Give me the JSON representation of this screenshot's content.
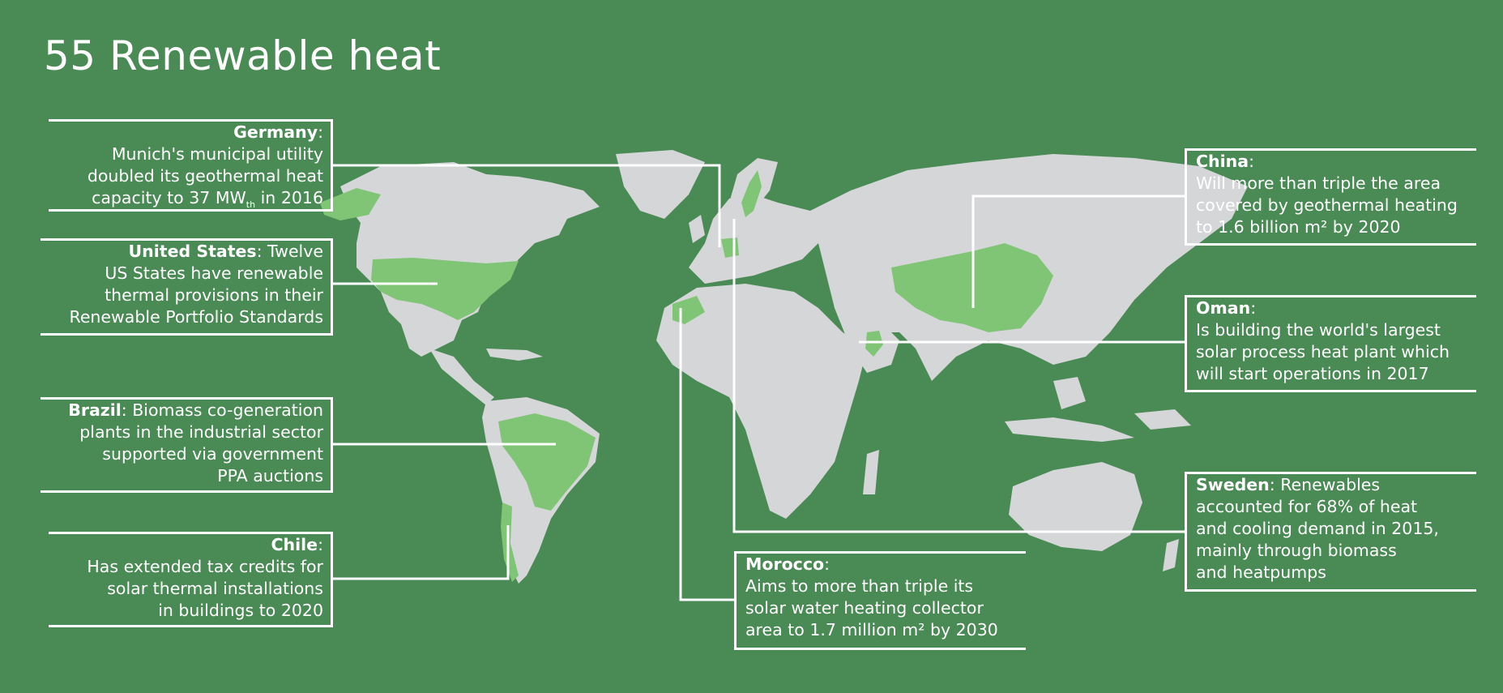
{
  "title": "55 Renewable heat",
  "colors": {
    "background": "#4a8a55",
    "land": "#d5d6d8",
    "highlight": "#80c576",
    "line": "#ffffff"
  },
  "highlighted_countries": [
    "Germany",
    "United States",
    "Brazil",
    "Chile",
    "China",
    "Oman",
    "Sweden",
    "Morocco"
  ],
  "callouts": {
    "germany": {
      "country": "Germany",
      "sep": ":",
      "lines": [
        "Munich's municipal utility",
        "doubled its geothermal heat"
      ],
      "last_pre": "capacity to 37 MW",
      "last_sub": "th",
      "last_post": " in 2016"
    },
    "united_states": {
      "country": "United States",
      "sep": ": Twelve",
      "lines": [
        "US States have renewable",
        "thermal provisions in their",
        "Renewable Portfolio Standards"
      ]
    },
    "brazil": {
      "country": "Brazil",
      "sep": ": Biomass co-generation",
      "lines": [
        "plants in the industrial sector",
        "supported via government",
        "PPA auctions"
      ]
    },
    "chile": {
      "country": "Chile",
      "sep": ":",
      "lines": [
        "Has extended tax credits for",
        "solar thermal installations",
        "in buildings to 2020"
      ]
    },
    "china": {
      "country": "China",
      "sep": ":",
      "lines": [
        "Will more than triple the area",
        "covered by geothermal heating",
        "to 1.6 billion m² by 2020"
      ]
    },
    "oman": {
      "country": "Oman",
      "sep": ":",
      "lines": [
        "Is building the world's largest",
        "solar process heat plant which",
        "will start operations in 2017"
      ]
    },
    "sweden": {
      "country": "Sweden",
      "sep": ": Renewables",
      "lines": [
        "accounted for 68% of heat",
        "and cooling demand in 2015,",
        "mainly through biomass",
        "and heatpumps"
      ]
    },
    "morocco": {
      "country": "Morocco",
      "sep": ":",
      "lines": [
        "Aims to more than triple its",
        "solar  water heating collector",
        "area to 1.7 million m² by 2030"
      ]
    }
  }
}
